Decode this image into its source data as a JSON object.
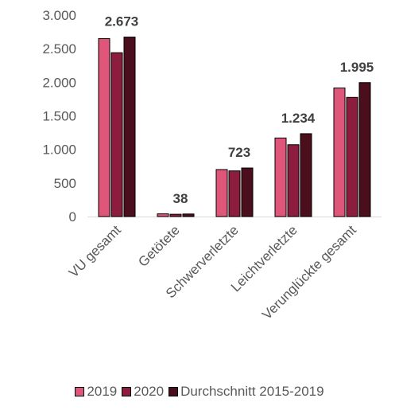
{
  "chart_data": {
    "type": "bar",
    "categories": [
      "VU gesamt",
      "Getötete",
      "Schwerverletzte",
      "Leichtverletzte",
      "Verunglückte gesamt"
    ],
    "series": [
      {
        "name": "2019",
        "color": "#e0567a",
        "values": [
          2650,
          40,
          700,
          1170,
          1915
        ]
      },
      {
        "name": "2020",
        "color": "#8c1d3e",
        "values": [
          2440,
          34,
          680,
          1070,
          1775
        ]
      },
      {
        "name": "Durchschnitt 2015-2019",
        "color": "#4a0e1d",
        "values": [
          2673,
          38,
          723,
          1234,
          1995
        ]
      }
    ],
    "data_labels": [
      "2.673",
      "38",
      "723",
      "1.234",
      "1.995"
    ],
    "yticks": [
      {
        "value": 0,
        "label": "0"
      },
      {
        "value": 500,
        "label": "500"
      },
      {
        "value": 1000,
        "label": "1.000"
      },
      {
        "value": 1500,
        "label": "1.500"
      },
      {
        "value": 2000,
        "label": "2.000"
      },
      {
        "value": 2500,
        "label": "2.500"
      },
      {
        "value": 3000,
        "label": "3.000"
      }
    ],
    "ylim": [
      0,
      3000
    ],
    "grid": false,
    "legend_position": "bottom"
  }
}
